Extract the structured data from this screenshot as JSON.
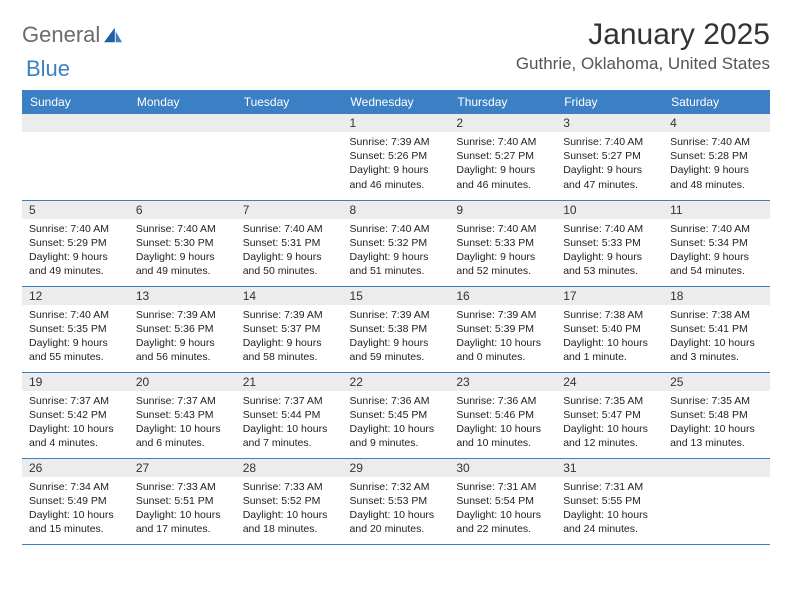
{
  "brand": {
    "text1": "General",
    "text2": "Blue"
  },
  "title": "January 2025",
  "location": "Guthrie, Oklahoma, United States",
  "headerColor": "#3b7fc4",
  "dayBarColor": "#ececec",
  "textColor": "#333333",
  "weekdays": [
    "Sunday",
    "Monday",
    "Tuesday",
    "Wednesday",
    "Thursday",
    "Friday",
    "Saturday"
  ],
  "labels": {
    "sunrise": "Sunrise:",
    "sunset": "Sunset:",
    "daylight": "Daylight:"
  },
  "firstDayOffset": 3,
  "daysInMonth": 31,
  "days": [
    {
      "n": 1,
      "sunrise": "7:39 AM",
      "sunset": "5:26 PM",
      "daylight": "9 hours and 46 minutes."
    },
    {
      "n": 2,
      "sunrise": "7:40 AM",
      "sunset": "5:27 PM",
      "daylight": "9 hours and 46 minutes."
    },
    {
      "n": 3,
      "sunrise": "7:40 AM",
      "sunset": "5:27 PM",
      "daylight": "9 hours and 47 minutes."
    },
    {
      "n": 4,
      "sunrise": "7:40 AM",
      "sunset": "5:28 PM",
      "daylight": "9 hours and 48 minutes."
    },
    {
      "n": 5,
      "sunrise": "7:40 AM",
      "sunset": "5:29 PM",
      "daylight": "9 hours and 49 minutes."
    },
    {
      "n": 6,
      "sunrise": "7:40 AM",
      "sunset": "5:30 PM",
      "daylight": "9 hours and 49 minutes."
    },
    {
      "n": 7,
      "sunrise": "7:40 AM",
      "sunset": "5:31 PM",
      "daylight": "9 hours and 50 minutes."
    },
    {
      "n": 8,
      "sunrise": "7:40 AM",
      "sunset": "5:32 PM",
      "daylight": "9 hours and 51 minutes."
    },
    {
      "n": 9,
      "sunrise": "7:40 AM",
      "sunset": "5:33 PM",
      "daylight": "9 hours and 52 minutes."
    },
    {
      "n": 10,
      "sunrise": "7:40 AM",
      "sunset": "5:33 PM",
      "daylight": "9 hours and 53 minutes."
    },
    {
      "n": 11,
      "sunrise": "7:40 AM",
      "sunset": "5:34 PM",
      "daylight": "9 hours and 54 minutes."
    },
    {
      "n": 12,
      "sunrise": "7:40 AM",
      "sunset": "5:35 PM",
      "daylight": "9 hours and 55 minutes."
    },
    {
      "n": 13,
      "sunrise": "7:39 AM",
      "sunset": "5:36 PM",
      "daylight": "9 hours and 56 minutes."
    },
    {
      "n": 14,
      "sunrise": "7:39 AM",
      "sunset": "5:37 PM",
      "daylight": "9 hours and 58 minutes."
    },
    {
      "n": 15,
      "sunrise": "7:39 AM",
      "sunset": "5:38 PM",
      "daylight": "9 hours and 59 minutes."
    },
    {
      "n": 16,
      "sunrise": "7:39 AM",
      "sunset": "5:39 PM",
      "daylight": "10 hours and 0 minutes."
    },
    {
      "n": 17,
      "sunrise": "7:38 AM",
      "sunset": "5:40 PM",
      "daylight": "10 hours and 1 minute."
    },
    {
      "n": 18,
      "sunrise": "7:38 AM",
      "sunset": "5:41 PM",
      "daylight": "10 hours and 3 minutes."
    },
    {
      "n": 19,
      "sunrise": "7:37 AM",
      "sunset": "5:42 PM",
      "daylight": "10 hours and 4 minutes."
    },
    {
      "n": 20,
      "sunrise": "7:37 AM",
      "sunset": "5:43 PM",
      "daylight": "10 hours and 6 minutes."
    },
    {
      "n": 21,
      "sunrise": "7:37 AM",
      "sunset": "5:44 PM",
      "daylight": "10 hours and 7 minutes."
    },
    {
      "n": 22,
      "sunrise": "7:36 AM",
      "sunset": "5:45 PM",
      "daylight": "10 hours and 9 minutes."
    },
    {
      "n": 23,
      "sunrise": "7:36 AM",
      "sunset": "5:46 PM",
      "daylight": "10 hours and 10 minutes."
    },
    {
      "n": 24,
      "sunrise": "7:35 AM",
      "sunset": "5:47 PM",
      "daylight": "10 hours and 12 minutes."
    },
    {
      "n": 25,
      "sunrise": "7:35 AM",
      "sunset": "5:48 PM",
      "daylight": "10 hours and 13 minutes."
    },
    {
      "n": 26,
      "sunrise": "7:34 AM",
      "sunset": "5:49 PM",
      "daylight": "10 hours and 15 minutes."
    },
    {
      "n": 27,
      "sunrise": "7:33 AM",
      "sunset": "5:51 PM",
      "daylight": "10 hours and 17 minutes."
    },
    {
      "n": 28,
      "sunrise": "7:33 AM",
      "sunset": "5:52 PM",
      "daylight": "10 hours and 18 minutes."
    },
    {
      "n": 29,
      "sunrise": "7:32 AM",
      "sunset": "5:53 PM",
      "daylight": "10 hours and 20 minutes."
    },
    {
      "n": 30,
      "sunrise": "7:31 AM",
      "sunset": "5:54 PM",
      "daylight": "10 hours and 22 minutes."
    },
    {
      "n": 31,
      "sunrise": "7:31 AM",
      "sunset": "5:55 PM",
      "daylight": "10 hours and 24 minutes."
    }
  ]
}
